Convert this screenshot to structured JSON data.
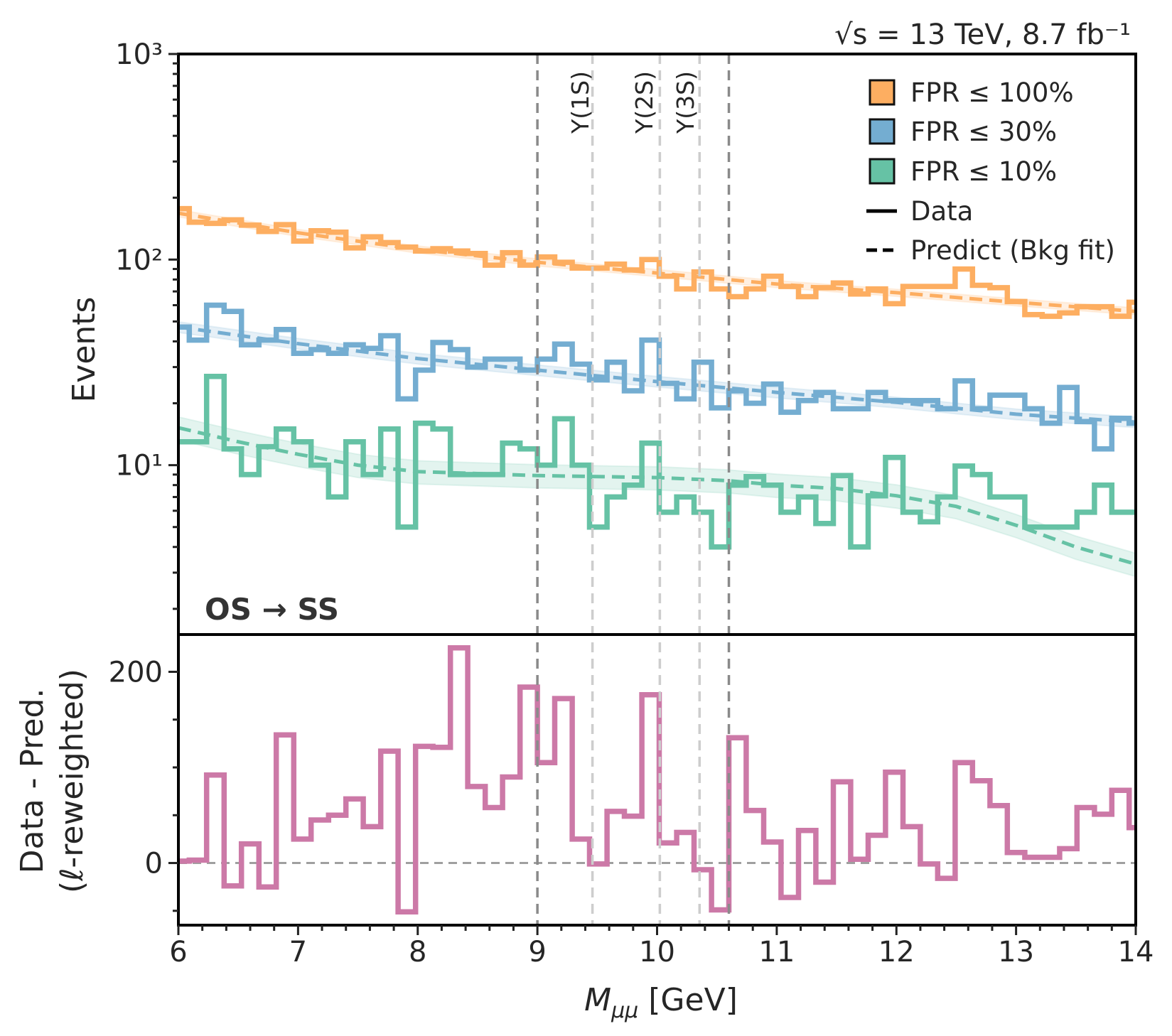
{
  "header": {
    "energy_lumi": "√s = 13 TeV,  8.7 fb⁻¹"
  },
  "region_label": "OS → SS",
  "legend": {
    "items": [
      {
        "label": "FPR ≤ 100%",
        "color": "#FDAE61"
      },
      {
        "label": "FPR ≤ 30%",
        "color": "#74ADD1"
      },
      {
        "label": "FPR ≤ 10%",
        "color": "#66C2A5"
      }
    ],
    "data_label": "Data",
    "predict_label": "Predict (Bkg fit)"
  },
  "resonances": [
    {
      "label": "Υ(1S)",
      "mass": 9.46
    },
    {
      "label": "Υ(2S)",
      "mass": 10.023
    },
    {
      "label": "Υ(3S)",
      "mass": 10.355
    }
  ],
  "signal_region_bounds": [
    9.0,
    10.6
  ],
  "x_axis": {
    "label_main": "M",
    "label_sub": "μμ",
    "label_unit": " [GeV]",
    "range": [
      6,
      14
    ],
    "ticks": [
      "6",
      "7",
      "8",
      "9",
      "10",
      "11",
      "12",
      "13",
      "14"
    ]
  },
  "chart_data": [
    {
      "type": "step",
      "panel": "top",
      "ylabel": "Events",
      "yscale": "log",
      "ylim": [
        1.5,
        1000
      ],
      "y_ticks": [
        {
          "value": 10,
          "label": "10¹"
        },
        {
          "value": 100,
          "label": "10²"
        },
        {
          "value": 1000,
          "label": "10³"
        }
      ],
      "bin_edges": [
        6,
        6.091,
        6.236,
        6.382,
        6.527,
        6.673,
        6.818,
        6.964,
        7.109,
        7.255,
        7.4,
        7.545,
        7.691,
        7.836,
        7.982,
        8.127,
        8.273,
        8.418,
        8.564,
        8.709,
        8.855,
        9.0,
        9.145,
        9.291,
        9.436,
        9.582,
        9.727,
        9.873,
        10.018,
        10.164,
        10.309,
        10.455,
        10.6,
        10.745,
        10.891,
        11.036,
        11.182,
        11.327,
        11.473,
        11.618,
        11.764,
        11.909,
        12.055,
        12.2,
        12.345,
        12.491,
        12.636,
        12.782,
        12.927,
        13.073,
        13.218,
        13.364,
        13.509,
        13.655,
        13.8,
        13.945,
        14
      ],
      "series": [
        {
          "name": "FPR ≤ 100%",
          "color": "#FDAE61",
          "data": [
            177,
            152,
            150,
            156,
            147,
            137,
            148,
            123,
            138,
            136,
            114,
            129,
            121,
            115,
            110,
            113,
            110,
            107,
            94,
            108,
            94,
            103,
            97,
            91,
            91,
            95,
            89,
            100,
            83,
            72,
            87,
            72,
            66,
            72,
            83,
            74,
            66,
            73,
            77,
            68,
            72,
            61,
            74,
            74,
            74,
            90,
            75,
            73,
            62.5,
            54,
            53,
            55,
            59,
            59,
            53,
            62
          ],
          "prediction": {
            "x": [
              6,
              7,
              8,
              9,
              10,
              11,
              12,
              13,
              14
            ],
            "y": [
              168,
              135,
              112,
              97,
              86,
              76,
              69,
              62,
              56
            ],
            "band_rel": 0.04
          }
        },
        {
          "name": "FPR ≤ 30%",
          "color": "#74ADD1",
          "data": [
            47,
            40.6,
            60,
            56,
            38.5,
            40.6,
            45.7,
            35,
            36.5,
            35,
            38.5,
            37,
            42.6,
            21,
            29,
            39.5,
            36.5,
            30,
            32.8,
            32.8,
            29,
            32.8,
            38.8,
            31,
            26,
            31.7,
            23,
            40.6,
            25,
            21,
            31.7,
            19,
            23,
            20,
            24.8,
            18.1,
            20.6,
            22.6,
            18.8,
            18.8,
            22.6,
            20.6,
            20.6,
            20.6,
            18.8,
            25.7,
            18.8,
            21.9,
            21.9,
            18.8,
            16,
            23.9,
            16.3,
            12,
            16.9,
            16
          ],
          "prediction": {
            "x": [
              6,
              7,
              8,
              9,
              10,
              11,
              12,
              13,
              14
            ],
            "y": [
              47,
              39,
              33,
              29,
              25.5,
              22.6,
              20.2,
              17.7,
              16.2
            ],
            "band_rel": 0.06
          }
        },
        {
          "name": "FPR ≤ 10%",
          "color": "#66C2A5",
          "data": [
            13,
            13,
            27,
            12,
            9,
            12.3,
            15,
            13,
            10,
            7,
            13,
            9,
            15,
            5,
            16,
            15,
            9,
            9,
            9,
            12.8,
            12,
            10,
            16.8,
            10,
            5,
            7,
            8,
            12.8,
            5.9,
            7,
            5.9,
            4,
            8,
            8.8,
            8,
            5.9,
            7,
            5.2,
            8.9,
            4,
            7.1,
            10.9,
            5.9,
            5.3,
            7,
            9.9,
            9,
            7,
            7,
            5,
            5,
            5,
            5.9,
            8,
            5.9,
            5.9
          ],
          "prediction": {
            "x": [
              6,
              6.5,
              7,
              7.5,
              8,
              9,
              10,
              10.6,
              11,
              11.5,
              12,
              12.5,
              13,
              13.5,
              14
            ],
            "y": [
              15.2,
              13,
              11.3,
              10,
              9.3,
              8.9,
              8.7,
              8.4,
              8.0,
              7.7,
              7.1,
              6.3,
              5.1,
              4.0,
              3.3
            ],
            "band_rel": 0.13
          }
        }
      ]
    },
    {
      "type": "step",
      "panel": "bottom",
      "ylabel_line1": "Data - Pred.",
      "ylabel_line2": "(ℓ-reweighted)",
      "ylim": [
        -65,
        239
      ],
      "y_ticks": [
        {
          "value": 0,
          "label": "0"
        },
        {
          "value": 200,
          "label": "200"
        }
      ],
      "bin_edges": [
        6,
        6.091,
        6.236,
        6.382,
        6.527,
        6.673,
        6.818,
        6.964,
        7.109,
        7.255,
        7.4,
        7.545,
        7.691,
        7.836,
        7.982,
        8.127,
        8.273,
        8.418,
        8.564,
        8.709,
        8.855,
        9.0,
        9.145,
        9.291,
        9.436,
        9.582,
        9.727,
        9.873,
        10.018,
        10.164,
        10.309,
        10.455,
        10.6,
        10.745,
        10.891,
        11.036,
        11.182,
        11.327,
        11.473,
        11.618,
        11.764,
        11.909,
        12.055,
        12.2,
        12.345,
        12.491,
        12.636,
        12.782,
        12.927,
        13.073,
        13.218,
        13.364,
        13.509,
        13.655,
        13.8,
        13.945,
        14
      ],
      "series": [
        {
          "color": "#CC79A7",
          "data": [
            2,
            3,
            92,
            -24,
            20,
            -25,
            134,
            25,
            45,
            50,
            67,
            38,
            117,
            -51,
            122,
            121,
            225,
            80,
            58,
            90,
            184,
            105,
            172,
            25,
            -1,
            54,
            49,
            176,
            21,
            32,
            -7,
            -49,
            131,
            55,
            22,
            -36,
            34,
            -20,
            85,
            4,
            29,
            95,
            38,
            -1,
            -16,
            105,
            86,
            60,
            11,
            6,
            6,
            15,
            58,
            51,
            76,
            37
          ]
        }
      ],
      "reference_line": 0
    }
  ]
}
